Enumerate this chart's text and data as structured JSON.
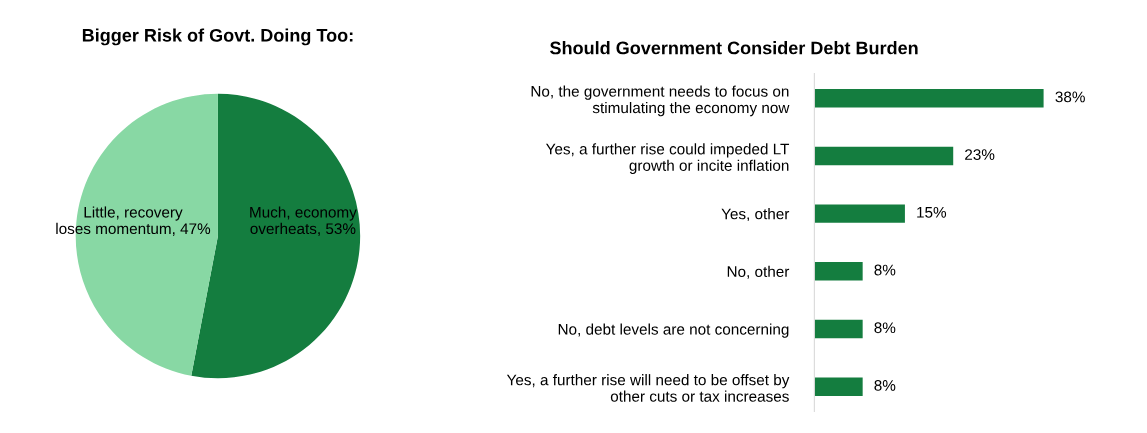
{
  "chart_data": [
    {
      "type": "pie",
      "title": "Bigger Risk of Govt. Doing Too:",
      "categories": [
        "Much, economy\noverheats",
        "Little, recovery\nloses momentum"
      ],
      "values": [
        53,
        47
      ],
      "value_labels": [
        "53%",
        "47%"
      ],
      "colors": [
        "#147d3f",
        "#88d8a4"
      ]
    },
    {
      "type": "bar",
      "orientation": "horizontal",
      "title": "Should Government Consider Debt Burden",
      "categories": [
        "No, the government needs to focus on\nstimulating the economy now",
        "Yes, a further rise could impeded LT\ngrowth or incite inflation",
        "Yes, other",
        "No, other",
        "No, debt levels are not concerning",
        "Yes, a further rise will need to be offset by\nother cuts or tax increases"
      ],
      "values": [
        38,
        23,
        15,
        8,
        8,
        8
      ],
      "value_labels": [
        "38%",
        "23%",
        "15%",
        "8%",
        "8%",
        "8%"
      ],
      "color": "#147d3f"
    }
  ]
}
